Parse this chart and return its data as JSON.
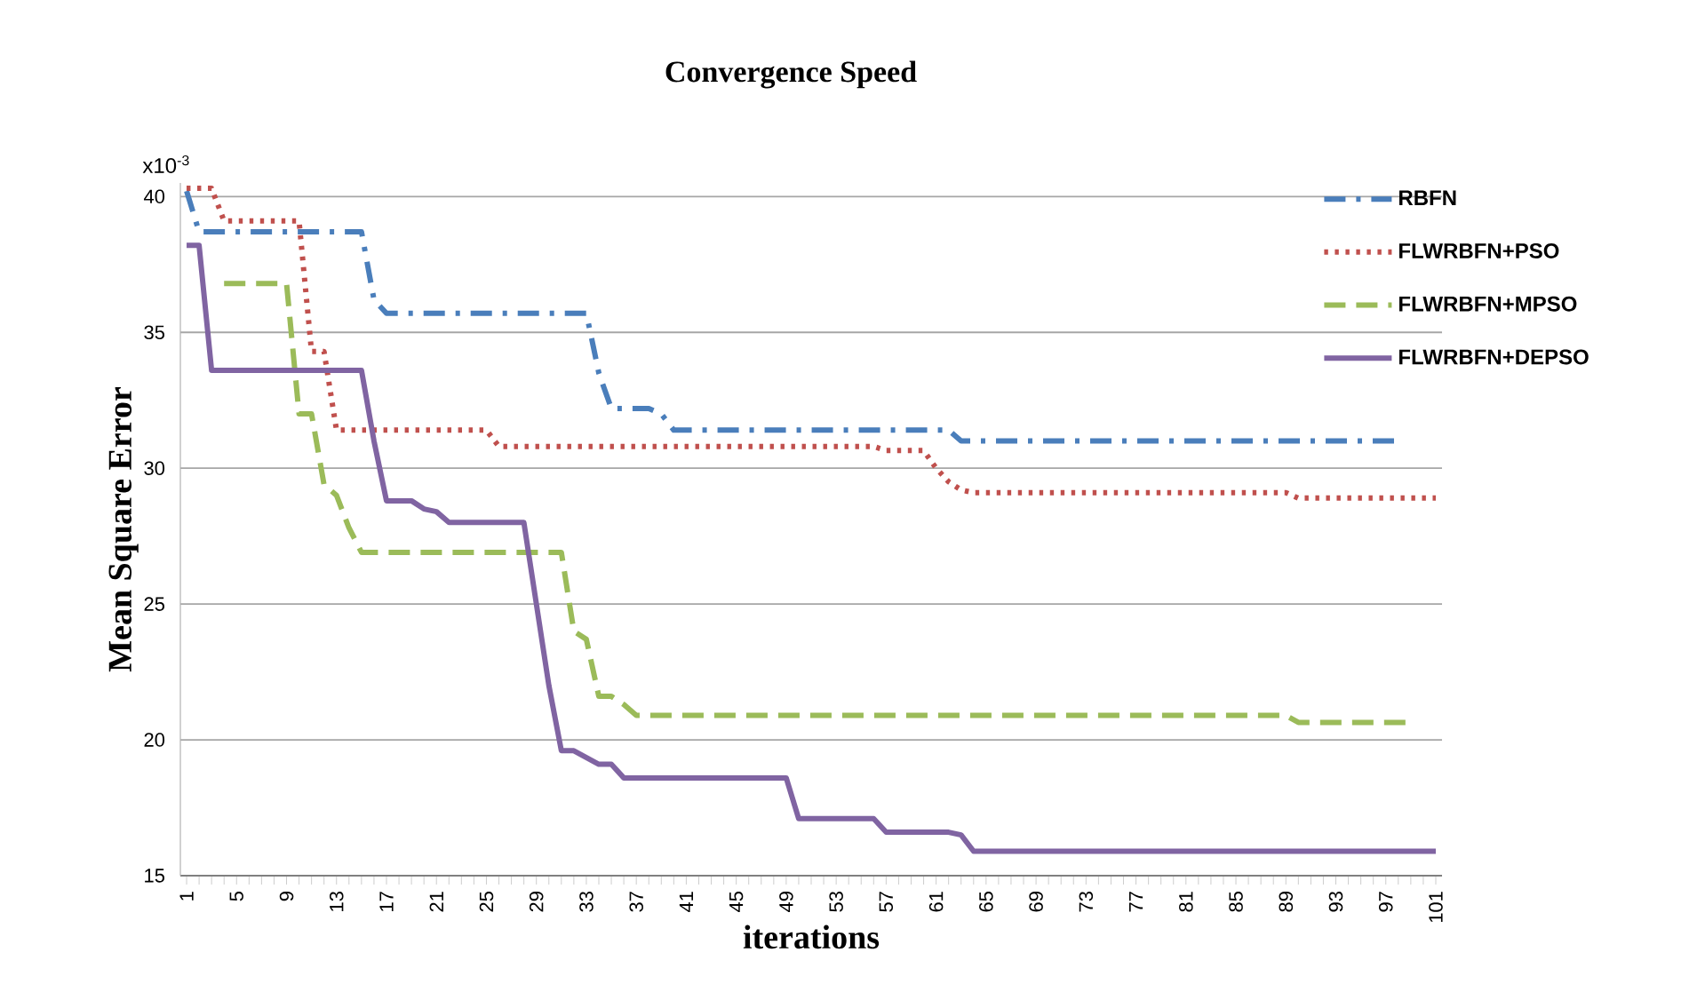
{
  "chart_data": {
    "type": "line",
    "title": "Convergence Speed",
    "xlabel": "iterations",
    "ylabel": "Mean Square Error",
    "annotations": [
      "x10$^{-3}$"
    ],
    "xlim": [
      0.5,
      101.5
    ],
    "xticks": [
      1,
      5,
      9,
      13,
      17,
      21,
      25,
      29,
      33,
      37,
      41,
      45,
      49,
      53,
      57,
      61,
      65,
      69,
      73,
      77,
      81,
      85,
      89,
      93,
      97,
      101
    ],
    "ylim": [
      15,
      40.5
    ],
    "yticks": [
      15,
      20,
      25,
      30,
      35,
      40
    ],
    "grid": "y",
    "legend": "top right",
    "marker": "none",
    "series": [
      {
        "name": "RBFN",
        "color": "#4a7ebb",
        "line_style": "dashdot",
        "x": [
          1,
          2,
          15,
          16,
          17,
          33,
          34,
          35,
          38,
          39,
          40,
          62,
          63,
          98
        ],
        "values": [
          40.2,
          38.7,
          38.7,
          36.2,
          35.7,
          35.7,
          33.5,
          32.2,
          32.2,
          32.0,
          31.4,
          31.4,
          31.0,
          31.0
        ]
      },
      {
        "name": "FLWRBFN+PSO",
        "color": "#c0504d",
        "line_style": "dotted",
        "x": [
          1,
          3,
          4,
          10,
          11,
          12,
          13,
          25,
          26,
          56,
          57,
          60,
          61,
          62,
          63,
          64,
          89,
          90,
          101
        ],
        "values": [
          40.3,
          40.3,
          39.1,
          39.1,
          34.3,
          34.3,
          31.4,
          31.4,
          30.8,
          30.8,
          30.65,
          30.65,
          30.0,
          29.5,
          29.2,
          29.1,
          29.1,
          28.9,
          28.9
        ]
      },
      {
        "name": "FLWRBFN+MPSO",
        "color": "#9bbb59",
        "line_style": "dashed",
        "x": [
          4,
          9,
          10,
          11,
          12,
          13,
          14,
          15,
          31,
          32,
          33,
          34,
          35,
          36,
          37,
          38,
          89,
          90,
          99
        ],
        "values": [
          36.8,
          36.8,
          32.0,
          32.0,
          29.4,
          29.0,
          27.8,
          26.9,
          26.9,
          24.0,
          23.7,
          21.6,
          21.6,
          21.3,
          20.9,
          20.9,
          20.9,
          20.64,
          20.64
        ]
      },
      {
        "name": "FLWRBFN+DEPSO",
        "color": "#8064a2",
        "line_style": "solid",
        "x": [
          1,
          2,
          3,
          15,
          16,
          17,
          19,
          20,
          21,
          22,
          28,
          29,
          30,
          31,
          32,
          34,
          35,
          36,
          49,
          50,
          56,
          57,
          62,
          63,
          64,
          101
        ],
        "values": [
          38.2,
          38.2,
          33.6,
          33.6,
          31.0,
          28.8,
          28.8,
          28.5,
          28.4,
          28.0,
          28.0,
          25.0,
          22.0,
          19.6,
          19.6,
          19.1,
          19.1,
          18.6,
          18.6,
          17.1,
          17.1,
          16.6,
          16.6,
          16.5,
          15.9,
          15.9
        ]
      }
    ]
  }
}
